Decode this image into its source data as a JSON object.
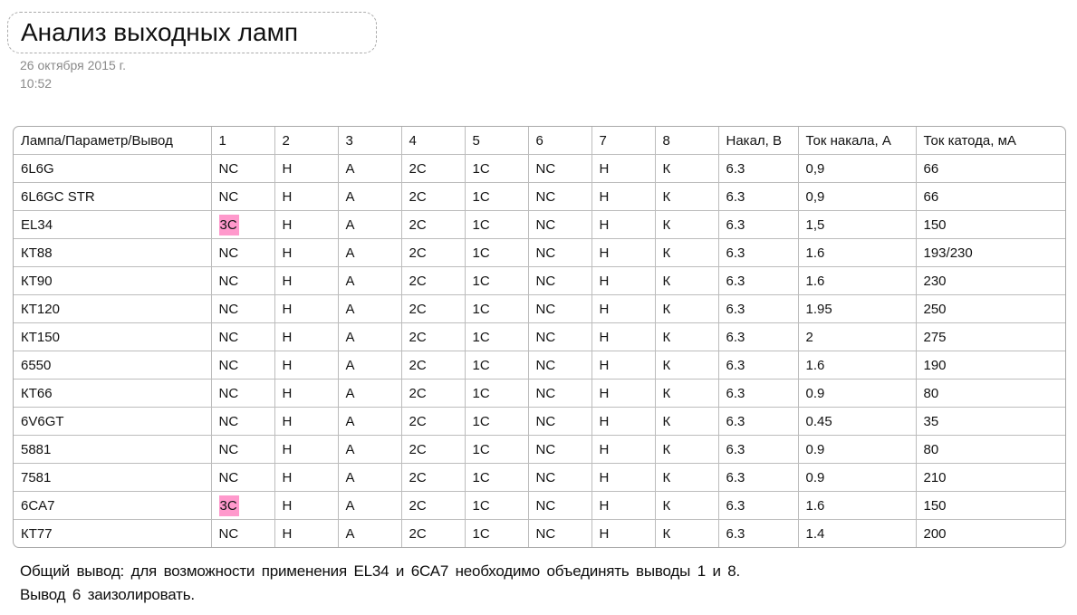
{
  "page": {
    "title": "Анализ выходных ламп",
    "date": "26 октября 2015 г.",
    "time": "10:52"
  },
  "table": {
    "columns": [
      "Лампа/Параметр/Вывод",
      "1",
      "2",
      "3",
      "4",
      "5",
      "6",
      "7",
      "8",
      "Накал, В",
      "Ток накала, А",
      "Ток катода, мА"
    ],
    "highlight_color": "#ff99cc",
    "rows": [
      {
        "cells": [
          "6L6G",
          "NC",
          "Н",
          "А",
          "2С",
          "1С",
          "NC",
          "Н",
          "К",
          "6.3",
          "0,9",
          "66"
        ],
        "highlight_pin1": false
      },
      {
        "cells": [
          "6L6GC STR",
          "NC",
          "Н",
          "А",
          "2С",
          "1С",
          "NC",
          "Н",
          "К",
          "6.3",
          "0,9",
          "66"
        ],
        "highlight_pin1": false
      },
      {
        "cells": [
          "EL34",
          "3С",
          "Н",
          "А",
          "2С",
          "1С",
          "NC",
          "Н",
          "К",
          "6.3",
          "1,5",
          "150"
        ],
        "highlight_pin1": true
      },
      {
        "cells": [
          "КТ88",
          "NC",
          "Н",
          "А",
          "2С",
          "1С",
          "NC",
          "Н",
          "К",
          "6.3",
          "1.6",
          "193/230"
        ],
        "highlight_pin1": false
      },
      {
        "cells": [
          "КТ90",
          "NC",
          "Н",
          "А",
          "2С",
          "1С",
          "NC",
          "Н",
          "К",
          "6.3",
          "1.6",
          "230"
        ],
        "highlight_pin1": false
      },
      {
        "cells": [
          "КТ120",
          "NC",
          "Н",
          "А",
          "2С",
          "1С",
          "NC",
          "Н",
          "К",
          "6.3",
          "1.95",
          "250"
        ],
        "highlight_pin1": false
      },
      {
        "cells": [
          "КТ150",
          "NC",
          "Н",
          "А",
          "2С",
          "1С",
          "NC",
          "Н",
          "К",
          "6.3",
          "2",
          "275"
        ],
        "highlight_pin1": false
      },
      {
        "cells": [
          "6550",
          "NC",
          "Н",
          "А",
          "2С",
          "1С",
          "NC",
          "Н",
          "К",
          "6.3",
          "1.6",
          "190"
        ],
        "highlight_pin1": false
      },
      {
        "cells": [
          "КТ66",
          "NC",
          "Н",
          "А",
          "2С",
          "1С",
          "NC",
          "Н",
          "К",
          "6.3",
          "0.9",
          "80"
        ],
        "highlight_pin1": false
      },
      {
        "cells": [
          "6V6GT",
          "NC",
          "Н",
          "А",
          "2С",
          "1С",
          "NC",
          "Н",
          "К",
          "6.3",
          "0.45",
          "35"
        ],
        "highlight_pin1": false
      },
      {
        "cells": [
          "5881",
          "NC",
          "Н",
          "А",
          "2С",
          "1С",
          "NC",
          "Н",
          "К",
          "6.3",
          "0.9",
          "80"
        ],
        "highlight_pin1": false
      },
      {
        "cells": [
          "7581",
          "NC",
          "Н",
          "А",
          "2С",
          "1С",
          "NC",
          "Н",
          "К",
          "6.3",
          "0.9",
          "210"
        ],
        "highlight_pin1": false
      },
      {
        "cells": [
          "6CA7",
          "3С",
          "Н",
          "А",
          "2С",
          "1С",
          "NC",
          "Н",
          "К",
          "6.3",
          "1.6",
          "150"
        ],
        "highlight_pin1": true
      },
      {
        "cells": [
          "КТ77",
          "NC",
          "Н",
          "А",
          "2С",
          "1С",
          "NC",
          "Н",
          "К",
          "6.3",
          "1.4",
          "200"
        ],
        "highlight_pin1": false
      }
    ]
  },
  "footer": {
    "line1": "Общий вывод: для возможности применения EL34 и 6СА7 необходимо объединять выводы 1 и 8.",
    "line2": "Вывод 6 заизолировать."
  }
}
